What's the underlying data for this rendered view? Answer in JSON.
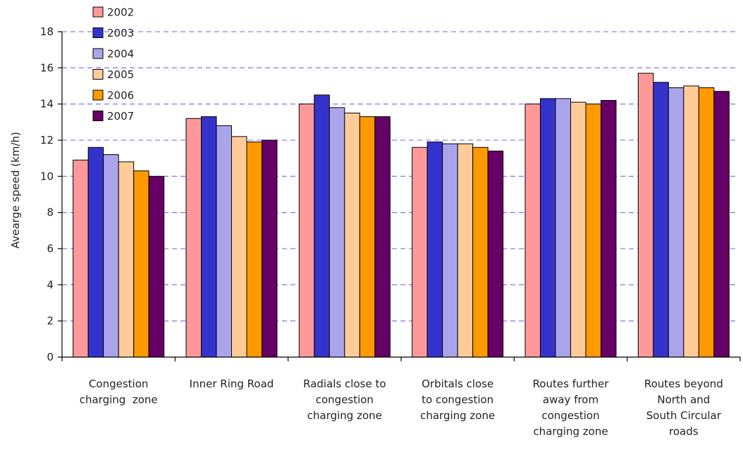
{
  "chart_data": {
    "type": "bar",
    "title": "",
    "xlabel": "",
    "ylabel": "Avearge speed (km/h)",
    "ylim": [
      0,
      18
    ],
    "yticks": [
      0,
      2,
      4,
      6,
      8,
      10,
      12,
      14,
      16,
      18
    ],
    "grid": "dashed horizontal",
    "legend_position": "top-left",
    "categories": [
      [
        "Congestion",
        "charging  zone"
      ],
      [
        "Inner Ring Road"
      ],
      [
        "Radials close to",
        "congestion",
        "charging zone"
      ],
      [
        "Orbitals close",
        "to congestion",
        "charging zone"
      ],
      [
        "Routes further",
        "away from",
        "congestion",
        "charging zone"
      ],
      [
        "Routes beyond",
        "North and",
        "South Circular",
        "roads"
      ]
    ],
    "series": [
      {
        "name": "2002",
        "color": "#FF9999",
        "values": [
          10.9,
          13.2,
          14.0,
          11.6,
          14.0,
          15.7
        ]
      },
      {
        "name": "2003",
        "color": "#3333CC",
        "values": [
          11.6,
          13.3,
          14.5,
          11.9,
          14.3,
          15.2
        ]
      },
      {
        "name": "2004",
        "color": "#AAA5EB",
        "values": [
          11.2,
          12.8,
          13.8,
          11.8,
          14.3,
          14.9
        ]
      },
      {
        "name": "2005",
        "color": "#FFCC99",
        "values": [
          10.8,
          12.2,
          13.5,
          11.8,
          14.1,
          15.0
        ]
      },
      {
        "name": "2006",
        "color": "#FF9900",
        "values": [
          10.3,
          11.9,
          13.3,
          11.6,
          14.0,
          14.9
        ]
      },
      {
        "name": "2007",
        "color": "#660066",
        "values": [
          10.0,
          12.0,
          13.3,
          11.4,
          14.2,
          14.7
        ]
      }
    ]
  }
}
